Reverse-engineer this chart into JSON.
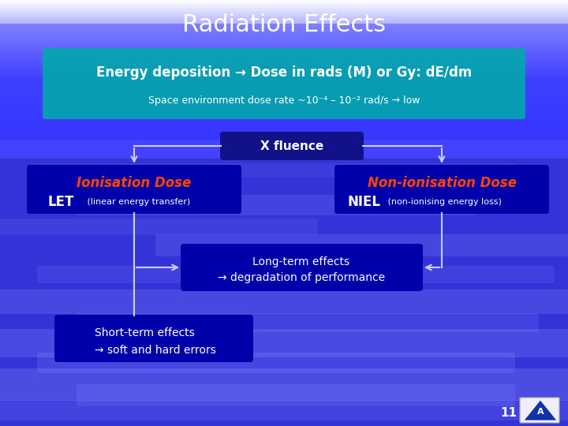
{
  "title": "Radiation Effects",
  "title_color": "#FFFFFF",
  "title_fontsize": 22,
  "bg_top_color": "#8888DD",
  "bg_bottom_color": "#3333CC",
  "top_box_color": "#00AAAA",
  "top_box_text": "Energy deposition → Dose in rads (M) or Gy: dE/dm",
  "top_box_text_color": "#FFFFFF",
  "top_box_subtext": "Space environment dose rate ~10⁻⁴ – 10⁻² rad/s → low",
  "top_box_subtext_color": "#FFFFFF",
  "fluence_box_text": "X fluence",
  "fluence_box_color": "#111188",
  "fluence_box_text_color": "#FFFFFF",
  "left_box_title": "Ionisation Dose",
  "left_box_title_color": "#FF4400",
  "left_box_subtitle": "LET",
  "left_box_subtitle_small": " (linear energy transfer)",
  "left_box_subtitle_color": "#FFFFFF",
  "left_box_color": "#0000AA",
  "right_box_title": "Non-ionisation Dose",
  "right_box_title_color": "#FF4400",
  "right_box_subtitle": "NIEL",
  "right_box_subtitle_small": " (non-ionising energy loss)",
  "right_box_subtitle_color": "#FFFFFF",
  "right_box_color": "#0000AA",
  "mid_box_text": "Long-term effects\n→ degradation of performance",
  "mid_box_color": "#0000AA",
  "mid_box_text_color": "#FFFFFF",
  "bot_box_text": "Short-term effects\n→ soft and hard errors",
  "bot_box_color": "#0000AA",
  "bot_box_text_color": "#FFFFFF",
  "page_num": "11",
  "arrow_color": "#CCCCFF"
}
